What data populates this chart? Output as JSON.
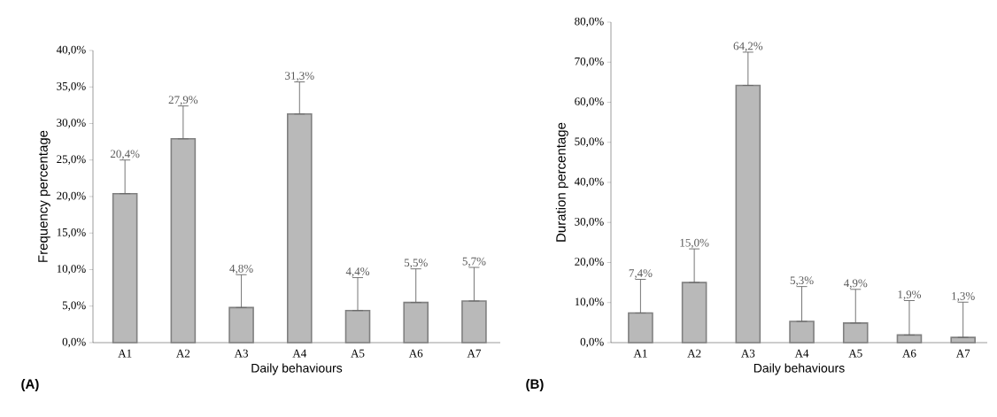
{
  "chart_data": [
    {
      "type": "bar",
      "xlabel": "Daily behaviours",
      "ylabel": "Frequency percentage",
      "color": "#808080",
      "categories": [
        "A1",
        "A2",
        "A3",
        "A4",
        "A5",
        "A6",
        "A7"
      ],
      "values": [
        20.4,
        27.9,
        4.8,
        31.3,
        4.4,
        5.5,
        5.7
      ],
      "errors": [
        [
          20.4,
          25.0
        ],
        [
          27.9,
          32.4
        ],
        [
          4.8,
          9.3
        ],
        [
          31.3,
          35.7
        ],
        [
          4.4,
          8.9
        ],
        [
          5.5,
          10.1
        ],
        [
          5.7,
          10.3
        ]
      ],
      "value_labels": [
        "20,4%",
        "27,9%",
        "4,8%",
        "31,3%",
        "4,4%",
        "5,5%",
        "5,7%"
      ],
      "ylim": [
        0,
        40
      ],
      "yticks": [
        {
          "value": 0,
          "label": "0,0%"
        },
        {
          "value": 5,
          "label": "5,0%"
        },
        {
          "value": 10,
          "label": "10,0%"
        },
        {
          "value": 15,
          "label": "15,0%"
        },
        {
          "value": 20,
          "label": "20,0%"
        },
        {
          "value": 25,
          "label": "25,0%"
        },
        {
          "value": 30,
          "label": "30,0%"
        },
        {
          "value": 35,
          "label": "35,0%"
        },
        {
          "value": 40,
          "label": "40,0%"
        }
      ],
      "annotations": [
        "(A)"
      ]
    },
    {
      "type": "bar",
      "xlabel": "Daily behaviours",
      "ylabel": "Duration percentage",
      "color": "#808080",
      "categories": [
        "A1",
        "A2",
        "A3",
        "A4",
        "A5",
        "A6",
        "A7"
      ],
      "values": [
        7.4,
        15.0,
        64.2,
        5.3,
        4.9,
        1.9,
        1.3
      ],
      "errors": [
        [
          7.4,
          15.8
        ],
        [
          15.0,
          23.4
        ],
        [
          64.2,
          72.5
        ],
        [
          5.3,
          14.0
        ],
        [
          4.9,
          13.3
        ],
        [
          1.9,
          10.5
        ],
        [
          1.3,
          10.1
        ]
      ],
      "value_labels": [
        "7,4%",
        "15,0%",
        "64,2%",
        "5,3%",
        "4,9%",
        "1,9%",
        "1,3%"
      ],
      "ylim": [
        0,
        80
      ],
      "yticks": [
        {
          "value": 0,
          "label": "0,0%"
        },
        {
          "value": 10,
          "label": "10,0%"
        },
        {
          "value": 20,
          "label": "20,0%"
        },
        {
          "value": 30,
          "label": "30,0%"
        },
        {
          "value": 40,
          "label": "40,0%"
        },
        {
          "value": 50,
          "label": "50,0%"
        },
        {
          "value": 60,
          "label": "60,0%"
        },
        {
          "value": 70,
          "label": "70,0%"
        },
        {
          "value": 80,
          "label": "80,0%"
        }
      ],
      "annotations": [
        "(B)"
      ]
    }
  ]
}
